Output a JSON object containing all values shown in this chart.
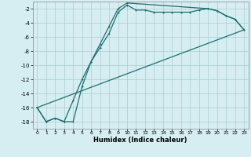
{
  "xlabel": "Humidex (Indice chaleur)",
  "background_color": "#d6eef2",
  "grid_color": "#aacccc",
  "line_color": "#1a7070",
  "xlim": [
    -0.5,
    23.5
  ],
  "ylim": [
    -19.0,
    -1.0
  ],
  "xticks": [
    0,
    1,
    2,
    3,
    4,
    5,
    6,
    7,
    8,
    9,
    10,
    11,
    12,
    13,
    14,
    15,
    16,
    17,
    18,
    19,
    20,
    21,
    22,
    23
  ],
  "yticks": [
    -18,
    -16,
    -14,
    -12,
    -10,
    -8,
    -6,
    -4,
    -2
  ],
  "line1_x": [
    0,
    1,
    2,
    3,
    4,
    5,
    6,
    7,
    8,
    9,
    10,
    19,
    20,
    21,
    22,
    23
  ],
  "line1_y": [
    -16,
    -18,
    -17.5,
    -18,
    -18,
    -13,
    -9.5,
    -7,
    -4.5,
    -2,
    -1.2,
    -2.0,
    -2.3,
    -3.0,
    -3.5,
    -5.0
  ],
  "line2_x": [
    0,
    1,
    2,
    3,
    4,
    5,
    6,
    7,
    8,
    9,
    10,
    11,
    12,
    13,
    14,
    15,
    16,
    17,
    18,
    19,
    20,
    21,
    22,
    23
  ],
  "line2_y": [
    -16,
    -18,
    -17.5,
    -18,
    -15,
    -12,
    -9.5,
    -7.5,
    -5.5,
    -2.5,
    -1.5,
    -2.2,
    -2.2,
    -2.5,
    -2.5,
    -2.5,
    -2.5,
    -2.5,
    -2.2,
    -2.0,
    -2.3,
    -3.0,
    -3.5,
    -5.0
  ],
  "line3_x": [
    0,
    23
  ],
  "line3_y": [
    -16,
    -5.0
  ]
}
